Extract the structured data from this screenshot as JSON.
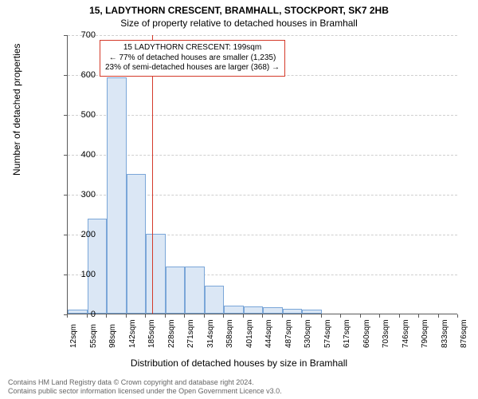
{
  "chart": {
    "type": "histogram",
    "title_line1": "15, LADYTHORN CRESCENT, BRAMHALL, STOCKPORT, SK7 2HB",
    "title_line2": "Size of property relative to detached houses in Bramhall",
    "ylabel": "Number of detached properties",
    "xlabel": "Distribution of detached houses by size in Bramhall",
    "background_color": "#ffffff",
    "grid_color": "#cfcfcf",
    "axis_color": "#5a5a5a",
    "bar_fill": "#dbe7f5",
    "bar_stroke": "#7aa6d8",
    "reference_line_color": "#d43a2a",
    "title_fontsize": 12,
    "label_fontsize": 12,
    "tick_fontsize": 11,
    "xtick_fontsize": 10,
    "callout_fontsize": 10,
    "ylim": [
      0,
      700
    ],
    "yticks": [
      0,
      100,
      200,
      300,
      400,
      500,
      600,
      700
    ],
    "xticks": [
      "12sqm",
      "55sqm",
      "98sqm",
      "142sqm",
      "185sqm",
      "228sqm",
      "271sqm",
      "314sqm",
      "358sqm",
      "401sqm",
      "444sqm",
      "487sqm",
      "530sqm",
      "574sqm",
      "617sqm",
      "660sqm",
      "703sqm",
      "746sqm",
      "790sqm",
      "833sqm",
      "876sqm"
    ],
    "bars": [
      {
        "x_index": 0,
        "value": 10
      },
      {
        "x_index": 1,
        "value": 238
      },
      {
        "x_index": 2,
        "value": 592
      },
      {
        "x_index": 3,
        "value": 350
      },
      {
        "x_index": 4,
        "value": 200
      },
      {
        "x_index": 5,
        "value": 118
      },
      {
        "x_index": 6,
        "value": 118
      },
      {
        "x_index": 7,
        "value": 70
      },
      {
        "x_index": 8,
        "value": 20
      },
      {
        "x_index": 9,
        "value": 18
      },
      {
        "x_index": 10,
        "value": 16
      },
      {
        "x_index": 11,
        "value": 12
      },
      {
        "x_index": 12,
        "value": 10
      },
      {
        "x_index": 13,
        "value": 0
      },
      {
        "x_index": 14,
        "value": 0
      },
      {
        "x_index": 15,
        "value": 0
      },
      {
        "x_index": 16,
        "value": 0
      },
      {
        "x_index": 17,
        "value": 0
      },
      {
        "x_index": 18,
        "value": 0
      },
      {
        "x_index": 19,
        "value": 0
      }
    ],
    "reference_line_x": 199,
    "x_range": [
      12,
      876
    ],
    "callout": {
      "line1": "15 LADYTHORN CRESCENT: 199sqm",
      "line2": "← 77% of detached houses are smaller (1,235)",
      "line3": "23% of semi-detached houses are larger (368) →"
    }
  },
  "footer": {
    "line1": "Contains HM Land Registry data © Crown copyright and database right 2024.",
    "line2": "Contains public sector information licensed under the Open Government Licence v3.0."
  }
}
